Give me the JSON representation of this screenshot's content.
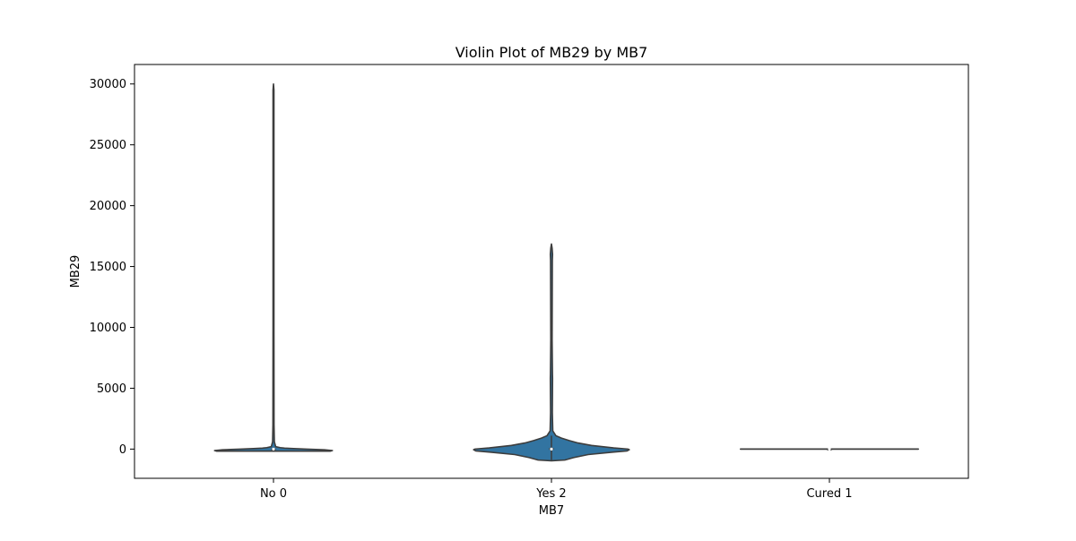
{
  "chart_data": {
    "type": "violin",
    "title": "Violin Plot of MB29 by MB7",
    "xlabel": "MB7",
    "ylabel": "MB29",
    "categories": [
      "No 0",
      "Yes 2",
      "Cured 1"
    ],
    "ylim": [
      -2400,
      31600
    ],
    "yticks": [
      0,
      5000,
      10000,
      15000,
      20000,
      25000,
      30000
    ],
    "ytick_labels": [
      "0",
      "5000",
      "10000",
      "15000",
      "20000",
      "25000",
      "30000"
    ],
    "fill_color": "#3274a1",
    "line_color": "#3d3d3d",
    "grid": false,
    "legend": "none",
    "violins": [
      {
        "category": "No 0",
        "median": 0,
        "box": [
          0,
          0
        ],
        "whisker": [
          -50,
          150
        ],
        "profile": [
          [
            -170,
            0.51
          ],
          [
            -120,
            0.53
          ],
          [
            -60,
            0.46
          ],
          [
            0,
            0.3
          ],
          [
            40,
            0.18
          ],
          [
            80,
            0.1
          ],
          [
            120,
            0.06
          ],
          [
            200,
            0.02
          ],
          [
            600,
            0.008
          ],
          [
            2000,
            0.005
          ],
          [
            10000,
            0.004
          ],
          [
            20000,
            0.004
          ],
          [
            29500,
            0.004
          ],
          [
            30000,
            0.0
          ]
        ]
      },
      {
        "category": "Yes 2",
        "median": 0,
        "box": [
          -20,
          50
        ],
        "whisker": [
          -900,
          1100
        ],
        "profile": [
          [
            -960,
            0.0
          ],
          [
            -900,
            0.12
          ],
          [
            -700,
            0.2
          ],
          [
            -450,
            0.33
          ],
          [
            -250,
            0.55
          ],
          [
            -150,
            0.68
          ],
          [
            -50,
            0.7
          ],
          [
            0,
            0.69
          ],
          [
            100,
            0.56
          ],
          [
            300,
            0.36
          ],
          [
            500,
            0.24
          ],
          [
            700,
            0.16
          ],
          [
            900,
            0.09
          ],
          [
            1100,
            0.04
          ],
          [
            1500,
            0.012
          ],
          [
            3000,
            0.008
          ],
          [
            5800,
            0.01
          ],
          [
            6200,
            0.009
          ],
          [
            9000,
            0.006
          ],
          [
            15500,
            0.008
          ],
          [
            16000,
            0.01
          ],
          [
            16500,
            0.006
          ],
          [
            16850,
            0.0
          ]
        ]
      },
      {
        "category": "Cured 1",
        "median": 0,
        "box": [
          0,
          0
        ],
        "whisker": [
          0,
          0
        ],
        "profile": [
          [
            -4,
            0.0
          ],
          [
            -3,
            0.8
          ],
          [
            0,
            0.8
          ],
          [
            3,
            0.8
          ],
          [
            4,
            0.0
          ]
        ]
      }
    ]
  }
}
